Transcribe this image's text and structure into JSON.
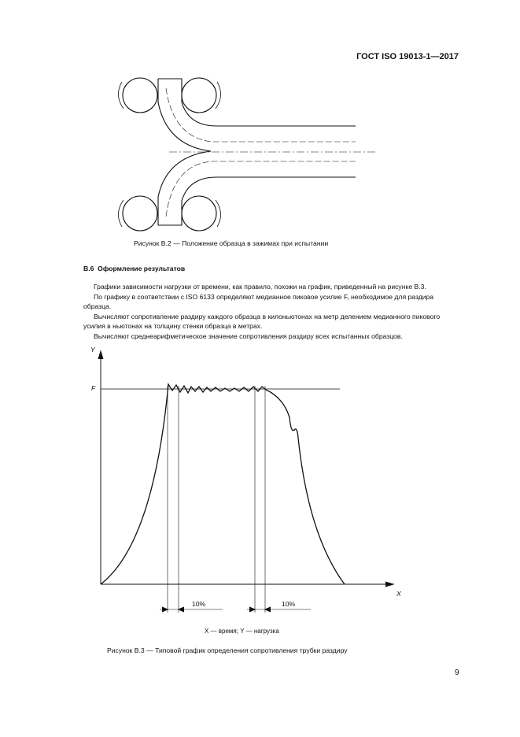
{
  "header": {
    "doc_code": "ГОСТ ISO 19013-1—2017"
  },
  "figure_b2": {
    "caption": "Рисунок B.2 — Положение образца в зажимах при испытании"
  },
  "section": {
    "number": "B.6",
    "title": "Оформление результатов",
    "paragraphs": [
      "Графики зависимости нагрузки от времени, как правило, похожи на график, приведенный на рисунке B.3.",
      "По графику в соответствии с ISO 6133 определяют медианное пиковое усилие F, необходимое для раздира",
      "образца.",
      "Вычисляют сопротивление раздиру каждого образца в килоньютонах на метр делением медианного пикового",
      "усилия в ньютонах на толщину стенки образца в метрах.",
      "Вычисляют среднеарифметическое значение сопротивления раздиру всех испытанных образцов."
    ]
  },
  "figure_b3": {
    "y_axis_label": "Y",
    "x_axis_label": "X",
    "f_label": "F",
    "interval_labels": [
      "10%",
      "10%"
    ],
    "legend": "X — время; Y — нагрузка",
    "caption": "Рисунок B.3 — Типовой график определения сопротивления трубки раздиру"
  },
  "page_number": "9"
}
